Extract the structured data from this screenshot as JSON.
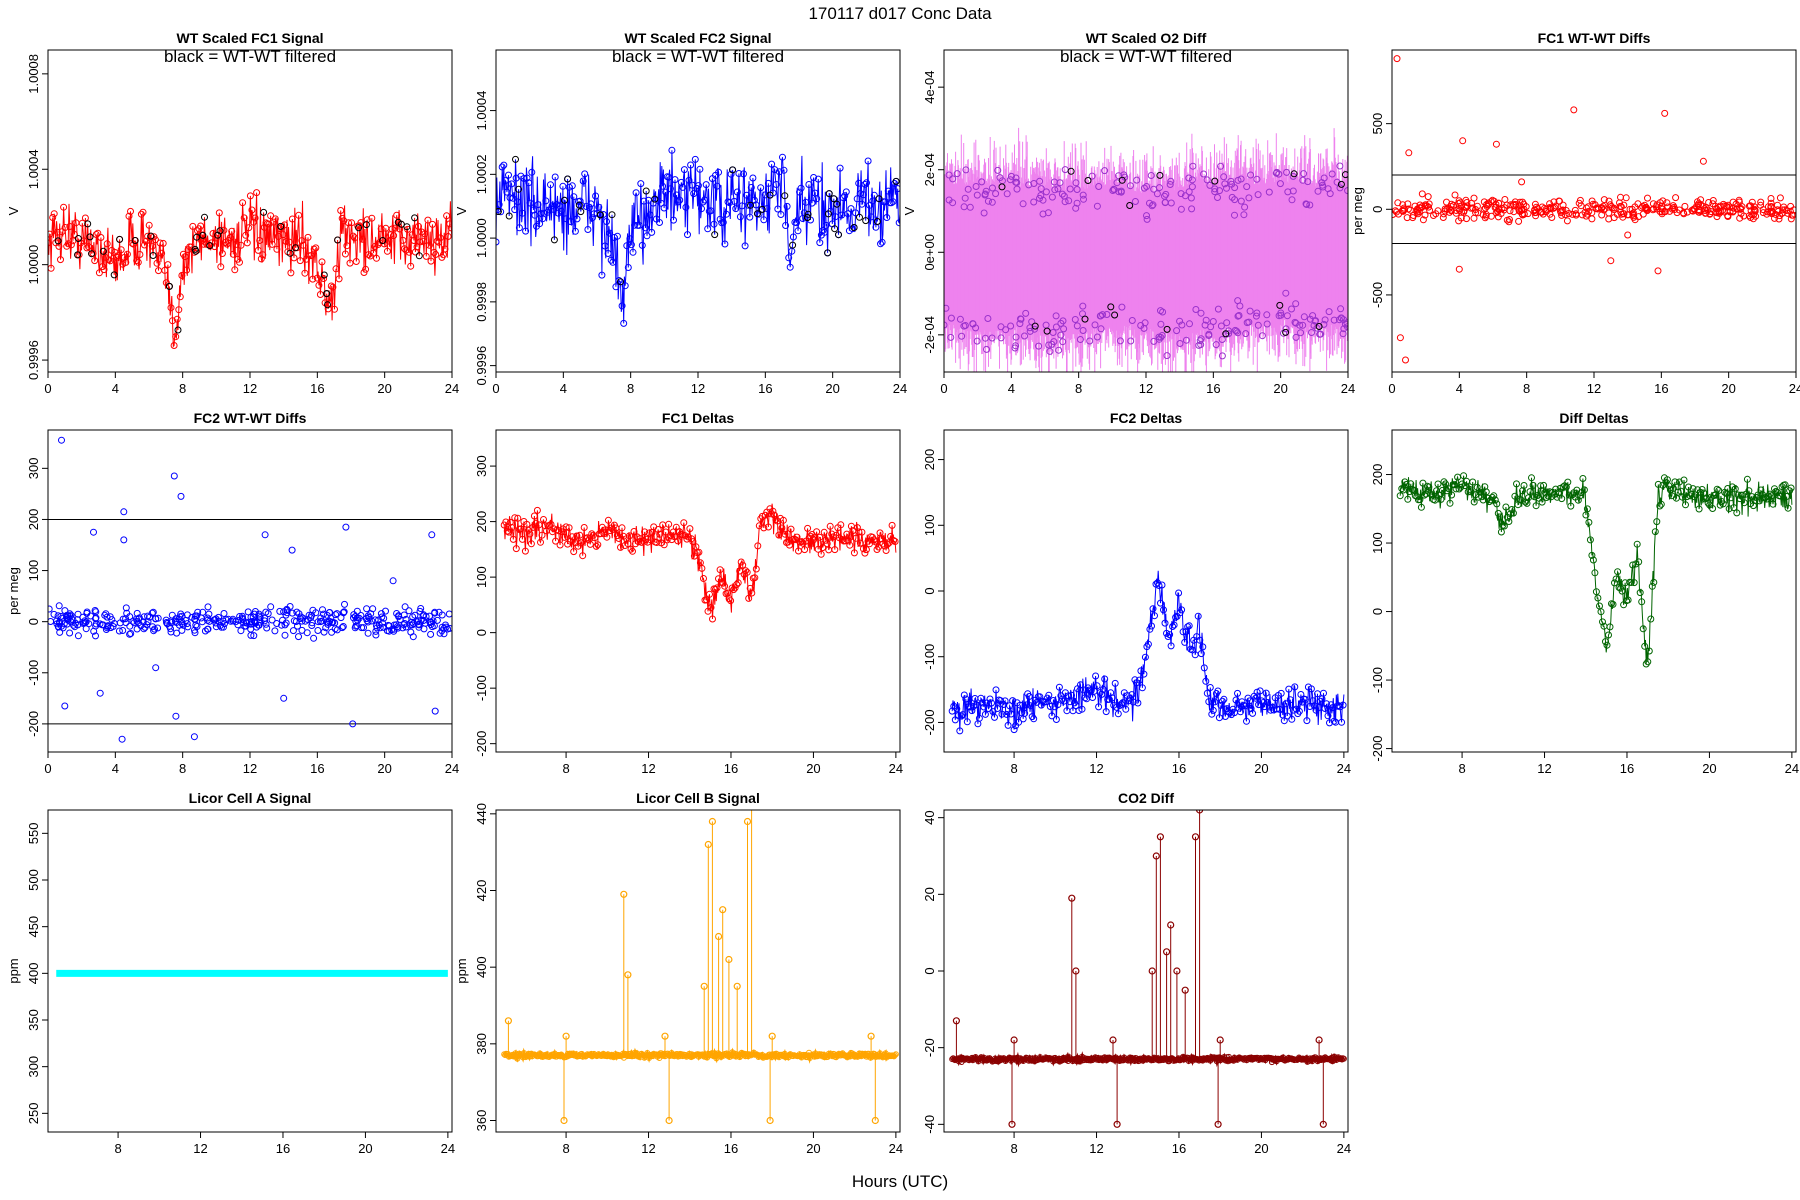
{
  "figure": {
    "title": "170117    d017    Conc Data",
    "xlabel": "Hours (UTC)"
  },
  "chart_data": [
    {
      "id": "wt_fc1",
      "type": "line",
      "title": "WT Scaled FC1 Signal",
      "annotation": "black = WT-WT filtered",
      "ylabel": "V",
      "xlim": [
        0,
        24
      ],
      "ylim": [
        0.99955,
        1.0009
      ],
      "xticks": [
        0,
        4,
        8,
        12,
        16,
        20,
        24
      ],
      "yticks": [
        0.9996,
        1.0,
        1.0004,
        1.0008
      ],
      "ytick_labels": [
        "0.9996",
        "1.0000",
        "1.0004",
        "1.0008"
      ],
      "color": "#ff0000",
      "mode": "noise",
      "series_name": "WT signal",
      "x": [
        0,
        1,
        2,
        3,
        4,
        5,
        6,
        7,
        7.5,
        8,
        9,
        10,
        11,
        12,
        13,
        14,
        15,
        16,
        16.8,
        17.5,
        18,
        19,
        20,
        21,
        22,
        23,
        24
      ],
      "y": [
        1.0001,
        1.00015,
        1.0001,
        1.00008,
        1.0,
        1.0001,
        1.0001,
        0.99995,
        0.9997,
        1.0,
        1.0001,
        1.00012,
        1.0001,
        1.00015,
        1.0001,
        1.0001,
        1.00012,
        1.0,
        0.9998,
        1.00015,
        1.00012,
        1.0001,
        1.0001,
        1.0001,
        1.00012,
        1.0001,
        1.00015
      ],
      "spread": 0.00012
    },
    {
      "id": "wt_fc2",
      "type": "line",
      "title": "WT Scaled FC2 Signal",
      "annotation": "black = WT-WT filtered",
      "ylabel": "V",
      "xlim": [
        0,
        24
      ],
      "ylim": [
        0.99958,
        1.00059
      ],
      "xticks": [
        0,
        4,
        8,
        12,
        16,
        20,
        24
      ],
      "yticks": [
        0.9996,
        0.9998,
        1.0,
        1.0002,
        1.0004
      ],
      "ytick_labels": [
        "0.9996",
        "0.9998",
        "1.0000",
        "1.0002",
        "1.0004"
      ],
      "color": "#0000ff",
      "mode": "noise",
      "series_name": "WT signal",
      "x": [
        0,
        1,
        2,
        3,
        4,
        5,
        6,
        7,
        7.5,
        8,
        9,
        10,
        11,
        12,
        13,
        14,
        15,
        16,
        17,
        17.5,
        18,
        19,
        20,
        21,
        22,
        23,
        24
      ],
      "y": [
        1.0001,
        1.00015,
        1.0001,
        1.0001,
        1.00008,
        1.0001,
        1.0001,
        0.99995,
        0.9998,
        1.0,
        1.0001,
        1.00015,
        1.0001,
        1.00015,
        1.0001,
        1.0001,
        1.00012,
        1.0001,
        1.0002,
        0.9999,
        1.0001,
        1.0001,
        1.0001,
        1.0001,
        1.00012,
        1.0001,
        1.00015
      ],
      "spread": 0.00012
    },
    {
      "id": "wt_o2",
      "type": "line",
      "title": "WT Scaled O2 Diff",
      "annotation": "black = WT-WT filtered",
      "ylabel": "V",
      "xlim": [
        0,
        24
      ],
      "ylim": [
        -0.00029,
        0.00049
      ],
      "xticks": [
        0,
        4,
        8,
        12,
        16,
        20,
        24
      ],
      "yticks": [
        -0.0002,
        0,
        0.0002,
        0.0004
      ],
      "ytick_labels": [
        "-2e-04",
        "0e+00",
        "2e-04",
        "4e-04"
      ],
      "color": "#ee82ee",
      "mode": "band",
      "series_name": "O2 diff",
      "x": [
        0,
        2,
        4,
        6,
        8,
        10,
        12,
        14,
        16,
        18,
        20,
        22,
        24
      ],
      "y": [
        0.00017,
        0.00015,
        0.00016,
        0.00015,
        0.00015,
        0.00016,
        0.00014,
        0.00015,
        0.00016,
        0.00016,
        0.00017,
        0.00016,
        0.00016
      ],
      "y2": [
        -0.00017,
        -0.00019,
        -0.00018,
        -0.00019,
        -0.00019,
        -0.00017,
        -0.00018,
        -0.0002,
        -0.00018,
        -0.00017,
        -0.00016,
        -0.00017,
        -0.00018
      ],
      "spread": 5e-05
    },
    {
      "id": "fc1_wtwt",
      "type": "scatter",
      "title": "FC1 WT-WT Diffs",
      "ylabel": "per meg",
      "xlim": [
        0,
        24
      ],
      "ylim": [
        -950,
        930
      ],
      "xticks": [
        0,
        4,
        8,
        12,
        16,
        20,
        24
      ],
      "yticks": [
        -500,
        0,
        500
      ],
      "ytick_labels": [
        "-500",
        "0",
        "500"
      ],
      "hlines": [
        200,
        -200
      ],
      "color": "#ff0000",
      "mode": "scatter",
      "series_name": "FC1 diffs",
      "x": [
        0,
        2,
        4,
        6,
        8,
        10,
        12,
        14,
        16,
        18,
        20,
        22,
        24
      ],
      "y": [
        0,
        0,
        0,
        0,
        0,
        0,
        0,
        0,
        0,
        0,
        0,
        0,
        0
      ],
      "spread": 60,
      "outliers": [
        [
          0.3,
          880
        ],
        [
          0.5,
          -750
        ],
        [
          0.8,
          -880
        ],
        [
          1.0,
          330
        ],
        [
          1.8,
          90
        ],
        [
          4,
          -350
        ],
        [
          4.2,
          400
        ],
        [
          6.2,
          380
        ],
        [
          7.7,
          160
        ],
        [
          10.8,
          580
        ],
        [
          13,
          -300
        ],
        [
          14,
          -150
        ],
        [
          15.8,
          -360
        ],
        [
          16.2,
          560
        ],
        [
          18.5,
          280
        ]
      ]
    },
    {
      "id": "fc2_wtwt",
      "type": "scatter",
      "title": "FC2 WT-WT Diffs",
      "ylabel": "per meg",
      "xlim": [
        0,
        24
      ],
      "ylim": [
        -255,
        375
      ],
      "xticks": [
        0,
        4,
        8,
        12,
        16,
        20,
        24
      ],
      "yticks": [
        -200,
        -100,
        0,
        100,
        200,
        300
      ],
      "ytick_labels": [
        "-200",
        "-100",
        "0",
        "100",
        "200",
        "300"
      ],
      "hlines": [
        200,
        -200
      ],
      "color": "#0000ff",
      "mode": "scatter",
      "series_name": "FC2 diffs",
      "x": [
        0,
        2,
        4,
        6,
        8,
        10,
        12,
        14,
        16,
        18,
        20,
        22,
        24
      ],
      "y": [
        0,
        0,
        0,
        0,
        0,
        0,
        0,
        0,
        0,
        0,
        0,
        0,
        0
      ],
      "spread": 25,
      "outliers": [
        [
          0.8,
          355
        ],
        [
          1.0,
          -165
        ],
        [
          2.7,
          175
        ],
        [
          3.1,
          -140
        ],
        [
          4.4,
          -230
        ],
        [
          4.5,
          215
        ],
        [
          4.5,
          160
        ],
        [
          6.4,
          -90
        ],
        [
          7.5,
          285
        ],
        [
          7.6,
          -185
        ],
        [
          7.9,
          245
        ],
        [
          8.7,
          -225
        ],
        [
          12.9,
          170
        ],
        [
          14.0,
          -150
        ],
        [
          14.5,
          140
        ],
        [
          17.7,
          185
        ],
        [
          18.1,
          -200
        ],
        [
          20.5,
          80
        ],
        [
          22.8,
          170
        ],
        [
          23.0,
          -175
        ]
      ]
    },
    {
      "id": "fc1_delta",
      "type": "line",
      "title": "FC1 Deltas",
      "xlim": [
        4.6,
        24.2
      ],
      "ylim": [
        -215,
        365
      ],
      "xticks": [
        8,
        12,
        16,
        20,
        24
      ],
      "yticks": [
        -200,
        -100,
        0,
        100,
        200,
        300
      ],
      "ytick_labels": [
        "-200",
        "-100",
        "0",
        "100",
        "200",
        "300"
      ],
      "color": "#ff0000",
      "mode": "noise",
      "series_name": "FC1 delta",
      "x": [
        5,
        6,
        7,
        8,
        9,
        10,
        11,
        12,
        13,
        14,
        14.5,
        15,
        15.5,
        16,
        16.5,
        17,
        17.5,
        18,
        19,
        20,
        21,
        22,
        23,
        24
      ],
      "y": [
        185,
        180,
        190,
        175,
        170,
        185,
        170,
        165,
        175,
        175,
        120,
        40,
        110,
        60,
        120,
        70,
        200,
        210,
        165,
        160,
        170,
        165,
        160,
        170
      ],
      "spread": 25
    },
    {
      "id": "fc2_delta",
      "type": "line",
      "title": "FC2 Deltas",
      "xlim": [
        4.6,
        24.2
      ],
      "ylim": [
        -245,
        245
      ],
      "xticks": [
        8,
        12,
        16,
        20,
        24
      ],
      "yticks": [
        -200,
        -100,
        0,
        100,
        200
      ],
      "ytick_labels": [
        "-200",
        "-100",
        "0",
        "100",
        "200"
      ],
      "color": "#0000ff",
      "mode": "noise",
      "series_name": "FC2 delta",
      "x": [
        5,
        6,
        7,
        8,
        9,
        10,
        11,
        12,
        13,
        14,
        14.5,
        15,
        15.5,
        16,
        16.5,
        17,
        17.5,
        18,
        19,
        20,
        21,
        22,
        23,
        24
      ],
      "y": [
        -180,
        -175,
        -170,
        -185,
        -175,
        -170,
        -160,
        -150,
        -165,
        -160,
        -80,
        20,
        -70,
        -20,
        -90,
        -60,
        -170,
        -180,
        -175,
        -170,
        -175,
        -170,
        -175,
        -175
      ],
      "spread": 25
    },
    {
      "id": "diff_delta",
      "type": "line",
      "title": "Diff Deltas",
      "xlim": [
        4.6,
        24.2
      ],
      "ylim": [
        -205,
        265
      ],
      "xticks": [
        8,
        12,
        16,
        20,
        24
      ],
      "yticks": [
        -200,
        -100,
        0,
        100,
        200
      ],
      "ytick_labels": [
        "-200",
        "-100",
        "0",
        "100",
        "200"
      ],
      "color": "#006400",
      "mode": "noise",
      "series_name": "diff delta",
      "x": [
        5,
        6,
        7,
        8,
        9,
        10,
        11,
        12,
        13,
        14,
        14.5,
        15,
        15.5,
        16,
        16.5,
        17,
        17.5,
        18,
        19,
        20,
        21,
        22,
        23,
        24
      ],
      "y": [
        180,
        175,
        175,
        185,
        170,
        130,
        170,
        170,
        175,
        170,
        40,
        -50,
        60,
        20,
        80,
        -80,
        170,
        180,
        170,
        165,
        170,
        165,
        165,
        170
      ],
      "spread": 20
    },
    {
      "id": "licor_a",
      "type": "line",
      "title": "Licor Cell A Signal",
      "ylabel": "ppm",
      "xlim": [
        4.6,
        24.2
      ],
      "ylim": [
        230,
        575
      ],
      "xticks": [
        8,
        12,
        16,
        20,
        24
      ],
      "yticks": [
        250,
        300,
        350,
        400,
        450,
        500,
        550
      ],
      "ytick_labels": [
        "250",
        "300",
        "350",
        "400",
        "450",
        "500",
        "550"
      ],
      "color": "#00ffff",
      "mode": "flat",
      "series_name": "Cell A",
      "x": [
        5,
        24
      ],
      "y": [
        400,
        400
      ],
      "spread": 0
    },
    {
      "id": "licor_b",
      "type": "line",
      "title": "Licor Cell B Signal",
      "ylabel": "ppm",
      "xlim": [
        4.6,
        24.2
      ],
      "ylim": [
        357,
        441
      ],
      "xticks": [
        8,
        12,
        16,
        20,
        24
      ],
      "yticks": [
        360,
        380,
        400,
        420,
        440
      ],
      "ytick_labels": [
        "360",
        "380",
        "400",
        "420",
        "440"
      ],
      "color": "#ffa500",
      "mode": "baseline",
      "series_name": "Cell B",
      "x": [
        5,
        24
      ],
      "y": [
        377,
        377
      ],
      "spread": 0.6,
      "spikes": [
        [
          5.2,
          386
        ],
        [
          7.9,
          360
        ],
        [
          8.0,
          382
        ],
        [
          10.8,
          419
        ],
        [
          11.0,
          398
        ],
        [
          12.8,
          382
        ],
        [
          13.0,
          360
        ],
        [
          14.7,
          395
        ],
        [
          14.9,
          432
        ],
        [
          15.1,
          438
        ],
        [
          15.4,
          408
        ],
        [
          15.6,
          415
        ],
        [
          15.9,
          402
        ],
        [
          16.3,
          395
        ],
        [
          16.8,
          438
        ],
        [
          17.0,
          445
        ],
        [
          17.9,
          360
        ],
        [
          18.0,
          382
        ],
        [
          22.8,
          382
        ],
        [
          23.0,
          360
        ]
      ]
    },
    {
      "id": "co2_diff",
      "type": "line",
      "title": "CO2 Diff",
      "xlim": [
        4.6,
        24.2
      ],
      "ylim": [
        -42,
        42
      ],
      "xticks": [
        8,
        12,
        16,
        20,
        24
      ],
      "yticks": [
        -40,
        -20,
        0,
        20,
        40
      ],
      "ytick_labels": [
        "-40",
        "-20",
        "0",
        "20",
        "40"
      ],
      "color": "#8b0000",
      "mode": "baseline",
      "series_name": "CO2 diff",
      "x": [
        5,
        24
      ],
      "y": [
        -23,
        -23
      ],
      "spread": 0.6,
      "spikes": [
        [
          5.2,
          -13
        ],
        [
          7.9,
          -40
        ],
        [
          8.0,
          -18
        ],
        [
          10.8,
          19
        ],
        [
          11.0,
          0
        ],
        [
          12.8,
          -18
        ],
        [
          13.0,
          -40
        ],
        [
          14.7,
          0
        ],
        [
          14.9,
          30
        ],
        [
          15.1,
          35
        ],
        [
          15.4,
          5
        ],
        [
          15.6,
          12
        ],
        [
          15.9,
          0
        ],
        [
          16.3,
          -5
        ],
        [
          16.8,
          35
        ],
        [
          17.0,
          42
        ],
        [
          17.9,
          -40
        ],
        [
          18.0,
          -18
        ],
        [
          22.8,
          -18
        ],
        [
          23.0,
          -40
        ]
      ]
    }
  ]
}
